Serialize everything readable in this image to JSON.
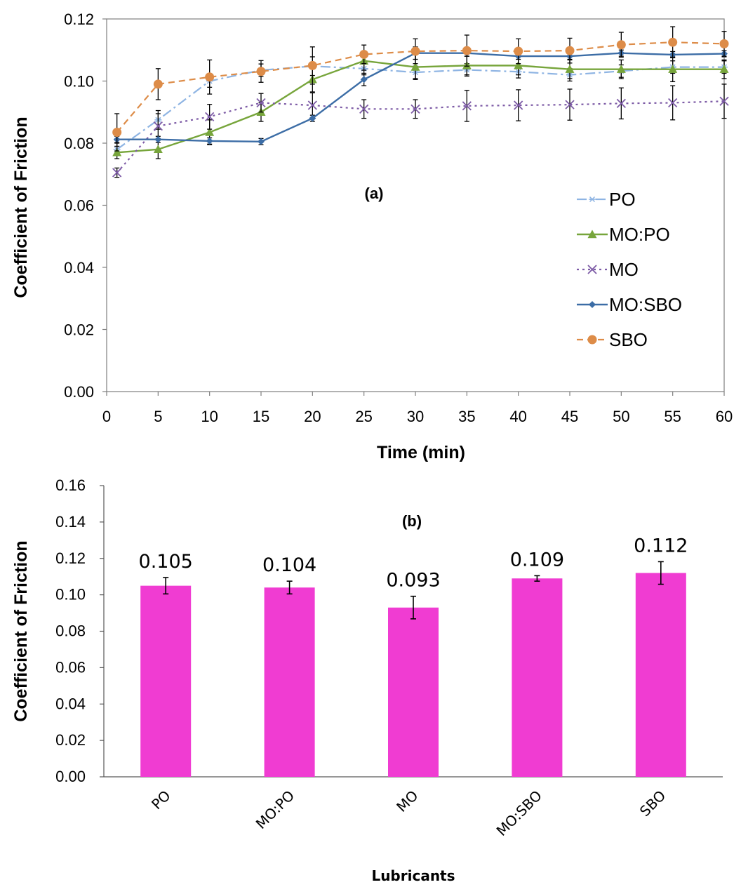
{
  "chart_data": [
    {
      "type": "line",
      "panel_label": "(a)",
      "xlabel": "Time (min)",
      "ylabel": "Coefficient of Friction",
      "xlim": [
        0,
        60
      ],
      "ylim": [
        0,
        0.12
      ],
      "x_ticks": [
        "0",
        "5",
        "10",
        "15",
        "20",
        "25",
        "30",
        "35",
        "40",
        "45",
        "50",
        "55",
        "60"
      ],
      "y_ticks": [
        "0.00",
        "0.02",
        "0.04",
        "0.06",
        "0.08",
        "0.10",
        "0.12"
      ],
      "x": [
        1,
        5,
        10,
        15,
        20,
        25,
        30,
        35,
        40,
        45,
        50,
        55,
        60
      ],
      "legend_position": "right-middle",
      "grid": false,
      "series": [
        {
          "name": "PO",
          "color": "#8EB4E3",
          "dash": "dash-dot",
          "marker": "star",
          "values": [
            0.078,
            0.0875,
            0.1,
            0.1035,
            0.1048,
            0.104,
            0.1028,
            0.1036,
            0.103,
            0.102,
            0.1032,
            0.1045,
            0.1045
          ],
          "errors": [
            0.002,
            0.003,
            0.002,
            0.002,
            0.003,
            0.002,
            0.002,
            0.002,
            0.002,
            0.002,
            0.002,
            0.002,
            0.002
          ]
        },
        {
          "name": "MO:PO",
          "color": "#77A53B",
          "dash": "solid",
          "marker": "triangle",
          "values": [
            0.077,
            0.078,
            0.0835,
            0.09,
            0.1005,
            0.1065,
            0.1045,
            0.105,
            0.105,
            0.1038,
            0.1038,
            0.1038,
            0.1038
          ],
          "errors": [
            0.002,
            0.003,
            0.004,
            0.003,
            0.004,
            0.003,
            0.004,
            0.003,
            0.003,
            0.003,
            0.003,
            0.004,
            0.003
          ]
        },
        {
          "name": "MO",
          "color": "#7D5BA6",
          "dash": "dotted",
          "marker": "x",
          "values": [
            0.0705,
            0.0855,
            0.0885,
            0.093,
            0.0922,
            0.091,
            0.091,
            0.092,
            0.0922,
            0.0924,
            0.0928,
            0.093,
            0.0935
          ],
          "errors": [
            0.0015,
            0.004,
            0.004,
            0.003,
            0.004,
            0.003,
            0.003,
            0.005,
            0.005,
            0.005,
            0.005,
            0.0055,
            0.0055
          ]
        },
        {
          "name": "MO:SBO",
          "color": "#3C6DA6",
          "dash": "solid",
          "marker": "diamond",
          "values": [
            0.0812,
            0.0812,
            0.0807,
            0.0805,
            0.088,
            0.1005,
            0.109,
            0.109,
            0.108,
            0.108,
            0.109,
            0.1085,
            0.1088
          ],
          "errors": [
            0.001,
            0.001,
            0.001,
            0.001,
            0.001,
            0.002,
            0.002,
            0.001,
            0.001,
            0.001,
            0.001,
            0.001,
            0.001
          ]
        },
        {
          "name": "SBO",
          "color": "#DD8C48",
          "dash": "dashed",
          "marker": "circle",
          "values": [
            0.0835,
            0.099,
            0.1013,
            0.1031,
            0.105,
            0.1086,
            0.1096,
            0.1098,
            0.1096,
            0.1098,
            0.1117,
            0.1125,
            0.112
          ],
          "errors": [
            0.006,
            0.005,
            0.0055,
            0.0035,
            0.006,
            0.003,
            0.004,
            0.005,
            0.004,
            0.004,
            0.004,
            0.005,
            0.004
          ]
        }
      ]
    },
    {
      "type": "bar",
      "panel_label": "(b)",
      "xlabel": "Lubricants",
      "ylabel": "Coefficient of Friction",
      "ylim": [
        0,
        0.16
      ],
      "y_ticks": [
        "0.00",
        "0.02",
        "0.04",
        "0.06",
        "0.08",
        "0.10",
        "0.12",
        "0.14",
        "0.16"
      ],
      "categories": [
        "PO",
        "MO:PO",
        "MO",
        "MO:SBO",
        "SBO"
      ],
      "values": [
        0.105,
        0.104,
        0.093,
        0.109,
        0.112
      ],
      "value_labels": [
        "0.105",
        "0.104",
        "0.093",
        "0.109",
        "0.112"
      ],
      "errors": [
        0.0045,
        0.0035,
        0.0062,
        0.0015,
        0.0062
      ],
      "bar_color": "#F03CD2",
      "grid": false
    }
  ]
}
